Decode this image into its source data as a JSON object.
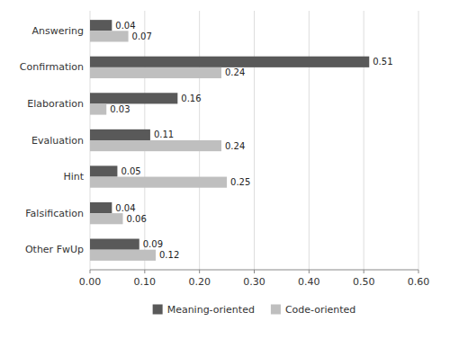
{
  "chart_data": {
    "type": "bar",
    "orientation": "horizontal",
    "categories": [
      "Answering",
      "Confirmation",
      "Elaboration",
      "Evaluation",
      "Hint",
      "Falsification",
      "Other FwUp"
    ],
    "series": [
      {
        "name": "Meaning-oriented",
        "color": "#595959",
        "values": [
          0.04,
          0.51,
          0.16,
          0.11,
          0.05,
          0.04,
          0.09
        ]
      },
      {
        "name": "Code-oriented",
        "color": "#bfbfbf",
        "values": [
          0.07,
          0.24,
          0.03,
          0.24,
          0.25,
          0.06,
          0.12
        ]
      }
    ],
    "xlim": [
      0,
      0.6
    ],
    "xticks": [
      {
        "value": 0,
        "label": "0.00"
      },
      {
        "value": 0.1,
        "label": "0.10"
      },
      {
        "value": 0.2,
        "label": "0.20"
      },
      {
        "value": 0.3,
        "label": "0.30"
      },
      {
        "value": 0.4,
        "label": "0.40"
      },
      {
        "value": 0.5,
        "label": "0.50"
      },
      {
        "value": 0.6,
        "label": "0.60"
      }
    ],
    "grid": true,
    "data_labels": true,
    "legend": "bottom"
  }
}
